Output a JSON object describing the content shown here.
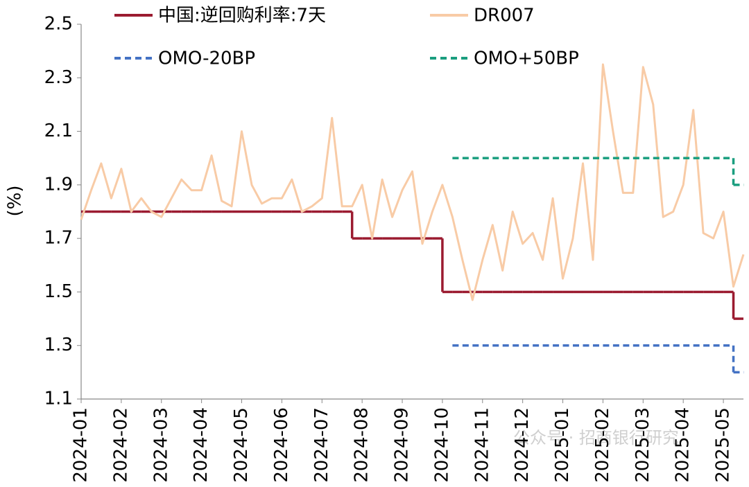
{
  "chart_data": {
    "type": "line",
    "y_label": "(%)",
    "watermark": "公众号 · 招商银行研究",
    "categories": [
      "2024-01",
      null,
      null,
      null,
      "2024-02",
      null,
      null,
      null,
      "2024-03",
      null,
      null,
      null,
      "2024-04",
      null,
      null,
      null,
      "2024-05",
      null,
      null,
      null,
      "2024-06",
      null,
      null,
      null,
      "2024-07",
      null,
      null,
      null,
      "2024-08",
      null,
      null,
      null,
      "2024-09",
      null,
      null,
      null,
      "2024-10",
      null,
      null,
      null,
      "2024-11",
      null,
      null,
      null,
      "2024-12",
      null,
      null,
      null,
      "2025-01",
      null,
      null,
      null,
      "2025-02",
      null,
      null,
      null,
      "2025-03",
      null,
      null,
      null,
      "2025-04",
      null,
      null,
      null,
      "2025-05",
      null,
      null
    ],
    "ylim": [
      1.1,
      2.5
    ],
    "yticks": [
      1.1,
      1.3,
      1.5,
      1.7,
      1.9,
      2.1,
      2.3,
      2.5
    ],
    "grid": false,
    "series": [
      {
        "name": "中国:逆回购利率:7天",
        "color": "#9b1b30",
        "step": true,
        "dash": false,
        "values": [
          1.8,
          1.8,
          1.8,
          1.8,
          1.8,
          1.8,
          1.8,
          1.8,
          1.8,
          1.8,
          1.8,
          1.8,
          1.8,
          1.8,
          1.8,
          1.8,
          1.8,
          1.8,
          1.8,
          1.8,
          1.8,
          1.8,
          1.8,
          1.8,
          1.8,
          1.8,
          1.8,
          1.7,
          1.7,
          1.7,
          1.7,
          1.7,
          1.7,
          1.7,
          1.7,
          1.7,
          1.5,
          1.5,
          1.5,
          1.5,
          1.5,
          1.5,
          1.5,
          1.5,
          1.5,
          1.5,
          1.5,
          1.5,
          1.5,
          1.5,
          1.5,
          1.5,
          1.5,
          1.5,
          1.5,
          1.5,
          1.5,
          1.5,
          1.5,
          1.5,
          1.5,
          1.5,
          1.5,
          1.5,
          1.5,
          1.4,
          1.4
        ]
      },
      {
        "name": "DR007",
        "color": "#f8cba6",
        "step": false,
        "dash": false,
        "values": [
          1.77,
          1.88,
          1.98,
          1.85,
          1.96,
          1.8,
          1.85,
          1.8,
          1.78,
          1.85,
          1.92,
          1.88,
          1.88,
          2.01,
          1.84,
          1.82,
          2.1,
          1.9,
          1.83,
          1.85,
          1.85,
          1.92,
          1.8,
          1.82,
          1.85,
          2.15,
          1.82,
          1.82,
          1.9,
          1.7,
          1.92,
          1.78,
          1.88,
          1.95,
          1.68,
          1.8,
          1.9,
          1.78,
          1.62,
          1.47,
          1.62,
          1.75,
          1.58,
          1.8,
          1.68,
          1.72,
          1.62,
          1.85,
          1.55,
          1.7,
          1.98,
          1.62,
          2.35,
          2.1,
          1.87,
          1.87,
          2.34,
          2.2,
          1.78,
          1.8,
          1.9,
          2.18,
          1.72,
          1.7,
          1.8,
          1.52,
          1.64
        ]
      },
      {
        "name": "OMO-20BP",
        "color": "#4472c4",
        "step": true,
        "dash": true,
        "values": [
          null,
          null,
          null,
          null,
          null,
          null,
          null,
          null,
          null,
          null,
          null,
          null,
          null,
          null,
          null,
          null,
          null,
          null,
          null,
          null,
          null,
          null,
          null,
          null,
          null,
          null,
          null,
          null,
          null,
          null,
          null,
          null,
          null,
          null,
          null,
          null,
          null,
          1.3,
          1.3,
          1.3,
          1.3,
          1.3,
          1.3,
          1.3,
          1.3,
          1.3,
          1.3,
          1.3,
          1.3,
          1.3,
          1.3,
          1.3,
          1.3,
          1.3,
          1.3,
          1.3,
          1.3,
          1.3,
          1.3,
          1.3,
          1.3,
          1.3,
          1.3,
          1.3,
          1.3,
          1.2,
          1.2
        ]
      },
      {
        "name": "OMO+50BP",
        "color": "#1a9e7f",
        "step": true,
        "dash": true,
        "values": [
          null,
          null,
          null,
          null,
          null,
          null,
          null,
          null,
          null,
          null,
          null,
          null,
          null,
          null,
          null,
          null,
          null,
          null,
          null,
          null,
          null,
          null,
          null,
          null,
          null,
          null,
          null,
          null,
          null,
          null,
          null,
          null,
          null,
          null,
          null,
          null,
          null,
          2.0,
          2.0,
          2.0,
          2.0,
          2.0,
          2.0,
          2.0,
          2.0,
          2.0,
          2.0,
          2.0,
          2.0,
          2.0,
          2.0,
          2.0,
          2.0,
          2.0,
          2.0,
          2.0,
          2.0,
          2.0,
          2.0,
          2.0,
          2.0,
          2.0,
          2.0,
          2.0,
          2.0,
          1.9,
          1.9
        ]
      }
    ]
  }
}
